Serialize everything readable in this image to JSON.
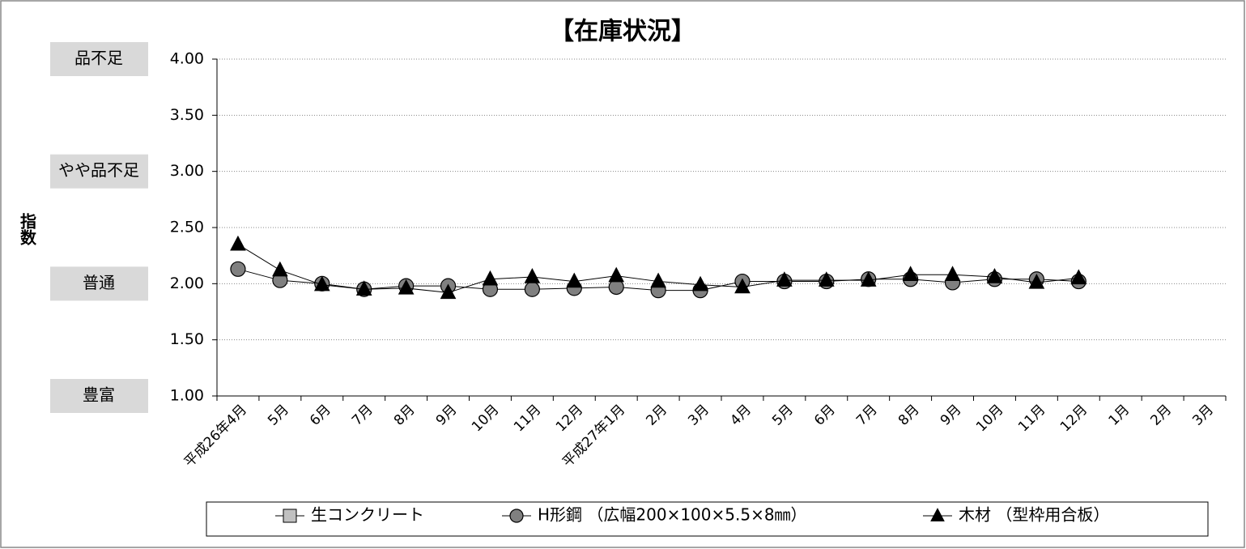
{
  "chart_data": {
    "type": "line",
    "title": "【在庫状況】",
    "ylabel": "指数",
    "categories": [
      "平成26年4月",
      "5月",
      "6月",
      "7月",
      "8月",
      "9月",
      "10月",
      "11月",
      "12月",
      "平成27年1月",
      "2月",
      "3月",
      "4月",
      "5月",
      "6月",
      "7月",
      "8月",
      "9月",
      "10月",
      "11月",
      "12月",
      "1月",
      "2月",
      "3月"
    ],
    "series": [
      {
        "name": "生コンクリート",
        "color": "#c0c0c0",
        "marker": "square",
        "values": [
          null,
          null,
          null,
          null,
          null,
          null,
          null,
          null,
          null,
          null,
          null,
          null,
          null,
          null,
          null,
          null,
          null,
          null,
          null,
          null,
          null,
          null,
          null,
          null
        ]
      },
      {
        "name": "H形鋼 （広幅200×100×5.5×8㎜）",
        "color": "#808080",
        "marker": "circle",
        "values": [
          2.13,
          2.03,
          2.0,
          1.95,
          1.98,
          1.98,
          1.95,
          1.95,
          1.96,
          1.97,
          1.94,
          1.94,
          2.02,
          2.02,
          2.02,
          2.04,
          2.04,
          2.01,
          2.04,
          2.04,
          2.02,
          null,
          null,
          null
        ]
      },
      {
        "name": "木材 （型枠用合板）",
        "color": "#000000",
        "marker": "triangle",
        "values": [
          2.35,
          2.12,
          1.99,
          1.95,
          1.96,
          1.92,
          2.04,
          2.06,
          2.02,
          2.07,
          2.02,
          1.99,
          1.97,
          2.03,
          2.03,
          2.03,
          2.08,
          2.08,
          2.06,
          2.01,
          2.05,
          null,
          null,
          null
        ]
      }
    ],
    "ylim": [
      1,
      4
    ],
    "yticks": [
      {
        "value": 1,
        "label": "1.00"
      },
      {
        "value": 1.5,
        "label": "1.50"
      },
      {
        "value": 2,
        "label": "2.00"
      },
      {
        "value": 2.5,
        "label": "2.50"
      },
      {
        "value": 3,
        "label": "3.00"
      },
      {
        "value": 3.5,
        "label": "3.50"
      },
      {
        "value": 4,
        "label": "4.00"
      }
    ],
    "grid": true,
    "legend": "bottom",
    "annotations": [
      {
        "text": "品不足",
        "value": 4
      },
      {
        "text": "やや品不足",
        "value": 3
      },
      {
        "text": "普通",
        "value": 2
      },
      {
        "text": "豊富",
        "value": 1
      }
    ]
  }
}
